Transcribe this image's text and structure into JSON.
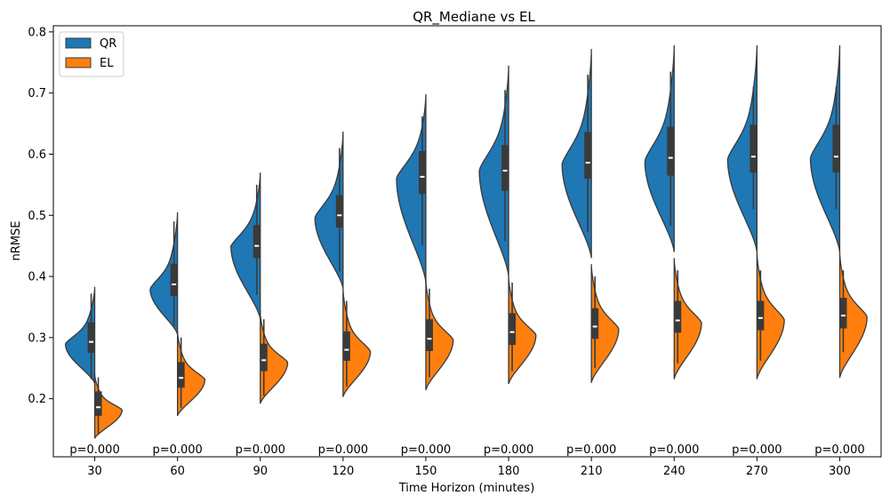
{
  "chart_data": {
    "type": "violin",
    "title": "QR_Mediane vs EL",
    "xlabel": "Time Horizon (minutes)",
    "ylabel": "nRMSE",
    "categories": [
      "30",
      "60",
      "90",
      "120",
      "150",
      "180",
      "210",
      "240",
      "270",
      "300"
    ],
    "ylim": [
      0.105,
      0.81
    ],
    "yticks": [
      0.2,
      0.3,
      0.4,
      0.5,
      0.6,
      0.7,
      0.8
    ],
    "ytick_labels": [
      "0.2",
      "0.3",
      "0.4",
      "0.5",
      "0.6",
      "0.7",
      "0.8"
    ],
    "legend": {
      "placement": "top-left"
    },
    "pvalue_labels": [
      "p=0.000",
      "p=0.000",
      "p=0.000",
      "p=0.000",
      "p=0.000",
      "p=0.000",
      "p=0.000",
      "p=0.000",
      "p=0.000",
      "p=0.000"
    ],
    "series": [
      {
        "name": "QR",
        "side": "left",
        "color": "#1f77b4",
        "violins": [
          {
            "min": 0.225,
            "max": 0.383,
            "q1": 0.275,
            "median": 0.293,
            "q3": 0.325,
            "wlo": 0.232,
            "whi": 0.372,
            "mode": 0.29,
            "modew": 0.75
          },
          {
            "min": 0.305,
            "max": 0.505,
            "q1": 0.368,
            "median": 0.387,
            "q3": 0.421,
            "wlo": 0.318,
            "whi": 0.49,
            "mode": 0.38,
            "modew": 0.7
          },
          {
            "min": 0.33,
            "max": 0.57,
            "q1": 0.43,
            "median": 0.45,
            "q3": 0.484,
            "wlo": 0.37,
            "whi": 0.55,
            "mode": 0.45,
            "modew": 0.75
          },
          {
            "min": 0.38,
            "max": 0.637,
            "q1": 0.48,
            "median": 0.5,
            "q3": 0.533,
            "wlo": 0.408,
            "whi": 0.61,
            "mode": 0.497,
            "modew": 0.72
          },
          {
            "min": 0.39,
            "max": 0.698,
            "q1": 0.535,
            "median": 0.563,
            "q3": 0.605,
            "wlo": 0.45,
            "whi": 0.662,
            "mode": 0.562,
            "modew": 0.75
          },
          {
            "min": 0.4,
            "max": 0.745,
            "q1": 0.54,
            "median": 0.573,
            "q3": 0.615,
            "wlo": 0.458,
            "whi": 0.705,
            "mode": 0.575,
            "modew": 0.75
          },
          {
            "min": 0.43,
            "max": 0.772,
            "q1": 0.56,
            "median": 0.586,
            "q3": 0.636,
            "wlo": 0.472,
            "whi": 0.73,
            "mode": 0.585,
            "modew": 0.75
          },
          {
            "min": 0.44,
            "max": 0.778,
            "q1": 0.565,
            "median": 0.594,
            "q3": 0.645,
            "wlo": 0.482,
            "whi": 0.735,
            "mode": 0.59,
            "modew": 0.75
          },
          {
            "min": 0.44,
            "max": 0.778,
            "q1": 0.57,
            "median": 0.596,
            "q3": 0.648,
            "wlo": 0.51,
            "whi": 0.71,
            "mode": 0.593,
            "modew": 0.75
          },
          {
            "min": 0.44,
            "max": 0.778,
            "q1": 0.57,
            "median": 0.596,
            "q3": 0.648,
            "wlo": 0.51,
            "whi": 0.71,
            "mode": 0.595,
            "modew": 0.75
          }
        ]
      },
      {
        "name": "EL",
        "side": "right",
        "color": "#ff7f0e",
        "violins": [
          {
            "min": 0.135,
            "max": 0.24,
            "q1": 0.172,
            "median": 0.186,
            "q3": 0.212,
            "wlo": 0.142,
            "whi": 0.235,
            "mode": 0.182,
            "modew": 0.7
          },
          {
            "min": 0.172,
            "max": 0.31,
            "q1": 0.218,
            "median": 0.234,
            "q3": 0.26,
            "wlo": 0.185,
            "whi": 0.3,
            "mode": 0.232,
            "modew": 0.7
          },
          {
            "min": 0.192,
            "max": 0.34,
            "q1": 0.245,
            "median": 0.263,
            "q3": 0.29,
            "wlo": 0.205,
            "whi": 0.33,
            "mode": 0.26,
            "modew": 0.7
          },
          {
            "min": 0.203,
            "max": 0.38,
            "q1": 0.262,
            "median": 0.28,
            "q3": 0.31,
            "wlo": 0.22,
            "whi": 0.36,
            "mode": 0.278,
            "modew": 0.7
          },
          {
            "min": 0.214,
            "max": 0.395,
            "q1": 0.278,
            "median": 0.298,
            "q3": 0.33,
            "wlo": 0.235,
            "whi": 0.38,
            "mode": 0.297,
            "modew": 0.7
          },
          {
            "min": 0.224,
            "max": 0.4,
            "q1": 0.288,
            "median": 0.309,
            "q3": 0.34,
            "wlo": 0.245,
            "whi": 0.39,
            "mode": 0.305,
            "modew": 0.7
          },
          {
            "min": 0.226,
            "max": 0.42,
            "q1": 0.298,
            "median": 0.318,
            "q3": 0.348,
            "wlo": 0.25,
            "whi": 0.4,
            "mode": 0.315,
            "modew": 0.7
          },
          {
            "min": 0.232,
            "max": 0.43,
            "q1": 0.308,
            "median": 0.328,
            "q3": 0.36,
            "wlo": 0.258,
            "whi": 0.41,
            "mode": 0.325,
            "modew": 0.7
          },
          {
            "min": 0.232,
            "max": 0.44,
            "q1": 0.312,
            "median": 0.332,
            "q3": 0.36,
            "wlo": 0.262,
            "whi": 0.41,
            "mode": 0.33,
            "modew": 0.7
          },
          {
            "min": 0.234,
            "max": 0.44,
            "q1": 0.315,
            "median": 0.336,
            "q3": 0.365,
            "wlo": 0.276,
            "whi": 0.41,
            "mode": 0.335,
            "modew": 0.7
          }
        ]
      }
    ]
  }
}
